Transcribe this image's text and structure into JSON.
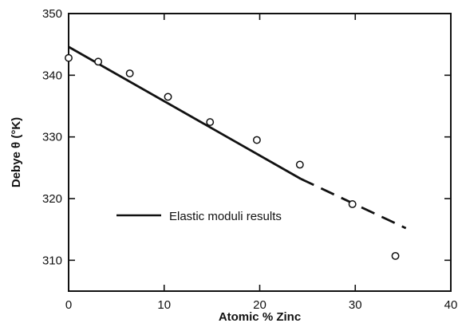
{
  "chart_data": {
    "type": "scatter",
    "title": "",
    "xlabel": "Atomic % Zinc",
    "ylabel": "Debye θ (°K)",
    "xlim": [
      0,
      40
    ],
    "ylim": [
      305,
      350
    ],
    "xticks": [
      0,
      10,
      20,
      30,
      40
    ],
    "yticks": [
      310,
      320,
      330,
      340,
      350
    ],
    "xtick_labels": [
      "0",
      "10",
      "20",
      "30",
      "40"
    ],
    "ytick_labels": [
      "310",
      "320",
      "330",
      "340",
      "350"
    ],
    "grid": false,
    "legend_position": "center-left",
    "series": [
      {
        "type": "scatter",
        "marker": "open-circle",
        "x": [
          0,
          3.1,
          6.4,
          10.4,
          14.8,
          19.7,
          24.2,
          29.7,
          34.2
        ],
        "y": [
          342.8,
          342.2,
          340.3,
          336.5,
          332.4,
          329.5,
          325.5,
          319.1,
          310.7
        ]
      },
      {
        "type": "line",
        "name": "Elastic moduli results",
        "style": "solid",
        "x": [
          0,
          24.3
        ],
        "y": [
          344.6,
          323.2
        ]
      },
      {
        "type": "line",
        "style": "dashed",
        "x": [
          24.3,
          35.3
        ],
        "y": [
          323.2,
          315.2
        ]
      }
    ],
    "colors": {
      "ink": "#111111",
      "background": "#ffffff"
    }
  }
}
